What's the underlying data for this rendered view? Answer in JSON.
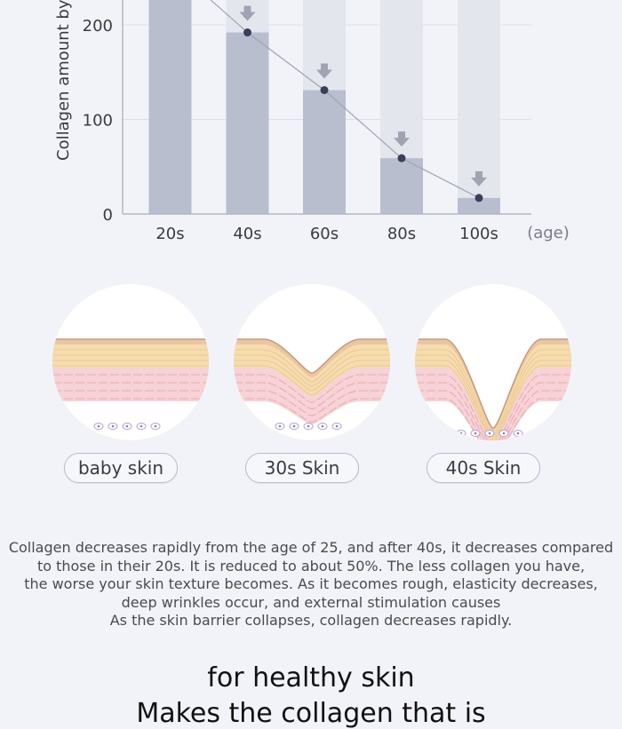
{
  "chart_data": {
    "type": "bar",
    "ylabel": "Collagen amount by",
    "x_unit_label": "(age)",
    "categories": [
      "20s",
      "40s",
      "60s",
      "80s",
      "100s"
    ],
    "values": [
      230,
      192,
      131,
      59,
      17
    ],
    "yticks": [
      0,
      100,
      200
    ],
    "ylim": [
      0,
      230
    ],
    "trend_line": true,
    "decrease_arrows": true,
    "grid": true,
    "colors": {
      "bar": "#b9becf",
      "bar_bg": "#e4e6ee",
      "point": "#3b3f5c",
      "line": "#9ea3b5",
      "arrow": "#a0a4b2"
    }
  },
  "skins": [
    {
      "label": "baby skin",
      "shape": "flat"
    },
    {
      "label": "30s Skin",
      "shape": "shallow-wrinkle"
    },
    {
      "label": "40s Skin",
      "shape": "deep-wrinkle"
    }
  ],
  "description": [
    "Collagen decreases rapidly from the age of 25, and after 40s, it decreases compared",
    "to those in their 20s. It is reduced to about 50%. The less collagen you have,",
    "the worse your skin texture becomes. As it becomes rough, elasticity decreases,",
    "deep wrinkles occur, and external stimulation causes",
    "As the skin barrier collapses, collagen decreases rapidly."
  ],
  "tagline": [
    "for healthy skin",
    "Makes the collagen that is"
  ]
}
